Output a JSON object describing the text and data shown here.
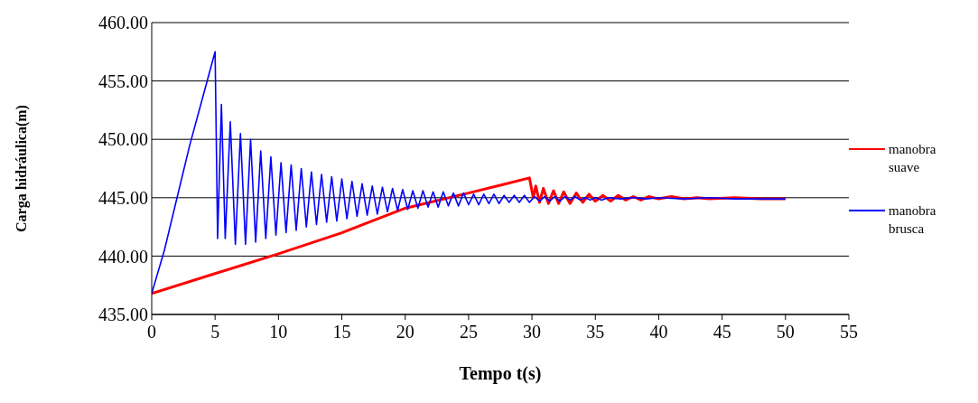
{
  "chart_data": {
    "type": "line",
    "xlabel": "Tempo t(s)",
    "ylabel": "Carga hidráulica(m)",
    "xlim": [
      0,
      55
    ],
    "xticks": [
      0,
      5,
      10,
      15,
      20,
      25,
      30,
      35,
      40,
      45,
      50,
      55
    ],
    "ylim": [
      435,
      460
    ],
    "yticks": [
      {
        "value": 435,
        "label": "435.00"
      },
      {
        "value": 440,
        "label": "440.00"
      },
      {
        "value": 445,
        "label": "445.00"
      },
      {
        "value": 450,
        "label": "450.00"
      },
      {
        "value": 455,
        "label": "455.00"
      },
      {
        "value": 460,
        "label": "460.00"
      }
    ],
    "grid": "y",
    "legend": "right",
    "marker": "none",
    "line_style": "solid",
    "series": [
      {
        "name": "manobra suave",
        "color": "#ff0000",
        "x": [
          0,
          5,
          10,
          15,
          20,
          25,
          28,
          29.8,
          30.1,
          30.3,
          30.6,
          30.9,
          31.3,
          31.7,
          32.1,
          32.5,
          33,
          33.5,
          34,
          34.5,
          35,
          35.6,
          36.2,
          36.8,
          37.4,
          38,
          38.6,
          39.2,
          40,
          41,
          42,
          43,
          44,
          46,
          48,
          50
        ],
        "values": [
          436.8,
          438.5,
          440.2,
          442,
          444.1,
          445.4,
          446.2,
          446.7,
          445,
          446,
          444.6,
          445.8,
          444.5,
          445.6,
          444.5,
          445.5,
          444.5,
          445.4,
          444.6,
          445.3,
          444.7,
          445.2,
          444.7,
          445.2,
          444.8,
          445.1,
          444.8,
          445.1,
          444.9,
          445.1,
          444.9,
          445,
          444.9,
          445,
          444.9,
          444.9
        ]
      },
      {
        "name": "manobra brusca",
        "color": "#0000ff",
        "x": [
          0,
          1,
          2,
          3,
          4,
          5,
          5.2,
          5.5,
          5.8,
          6.2,
          6.6,
          7,
          7.4,
          7.8,
          8.2,
          8.6,
          9,
          9.4,
          9.8,
          10.2,
          10.6,
          11,
          11.4,
          11.8,
          12.2,
          12.6,
          13,
          13.4,
          13.8,
          14.2,
          14.6,
          15,
          15.4,
          15.8,
          16.2,
          16.6,
          17,
          17.4,
          17.8,
          18.2,
          18.6,
          19,
          19.4,
          19.8,
          20.2,
          20.6,
          21,
          21.4,
          21.8,
          22.2,
          22.6,
          23,
          23.4,
          23.8,
          24.2,
          24.6,
          25,
          25.4,
          25.8,
          26.2,
          26.6,
          27,
          27.4,
          27.8,
          28.2,
          28.6,
          29,
          29.4,
          29.8,
          30.2,
          30.6,
          31,
          31.4,
          31.8,
          32.2,
          32.6,
          33,
          33.4,
          33.8,
          34.2,
          34.6,
          35,
          35.5,
          36,
          37,
          38,
          39,
          40,
          42,
          44,
          46,
          48,
          50
        ],
        "values": [
          436.8,
          440.5,
          445,
          449.5,
          453.5,
          457.5,
          441.5,
          453,
          441.5,
          451.5,
          441,
          450.5,
          441,
          450,
          441.2,
          449,
          441.5,
          448.5,
          441.8,
          448,
          442,
          447.8,
          442.2,
          447.5,
          442.5,
          447.2,
          442.7,
          447,
          442.9,
          446.8,
          443,
          446.6,
          443.2,
          446.4,
          443.4,
          446.2,
          443.5,
          446,
          443.6,
          445.9,
          443.8,
          445.8,
          443.9,
          445.7,
          444,
          445.6,
          444.1,
          445.6,
          444.2,
          445.5,
          444.2,
          445.5,
          444.3,
          445.4,
          444.3,
          445.4,
          444.4,
          445.3,
          444.4,
          445.3,
          444.5,
          445.3,
          444.5,
          445.2,
          444.6,
          445.2,
          444.6,
          445.2,
          444.6,
          445.1,
          444.7,
          445.1,
          444.7,
          445.1,
          444.7,
          445.1,
          444.8,
          445.1,
          444.8,
          445,
          444.8,
          445,
          444.8,
          445,
          444.9,
          445,
          444.9,
          445,
          444.9,
          445,
          444.9,
          444.9,
          444.9
        ]
      }
    ]
  }
}
